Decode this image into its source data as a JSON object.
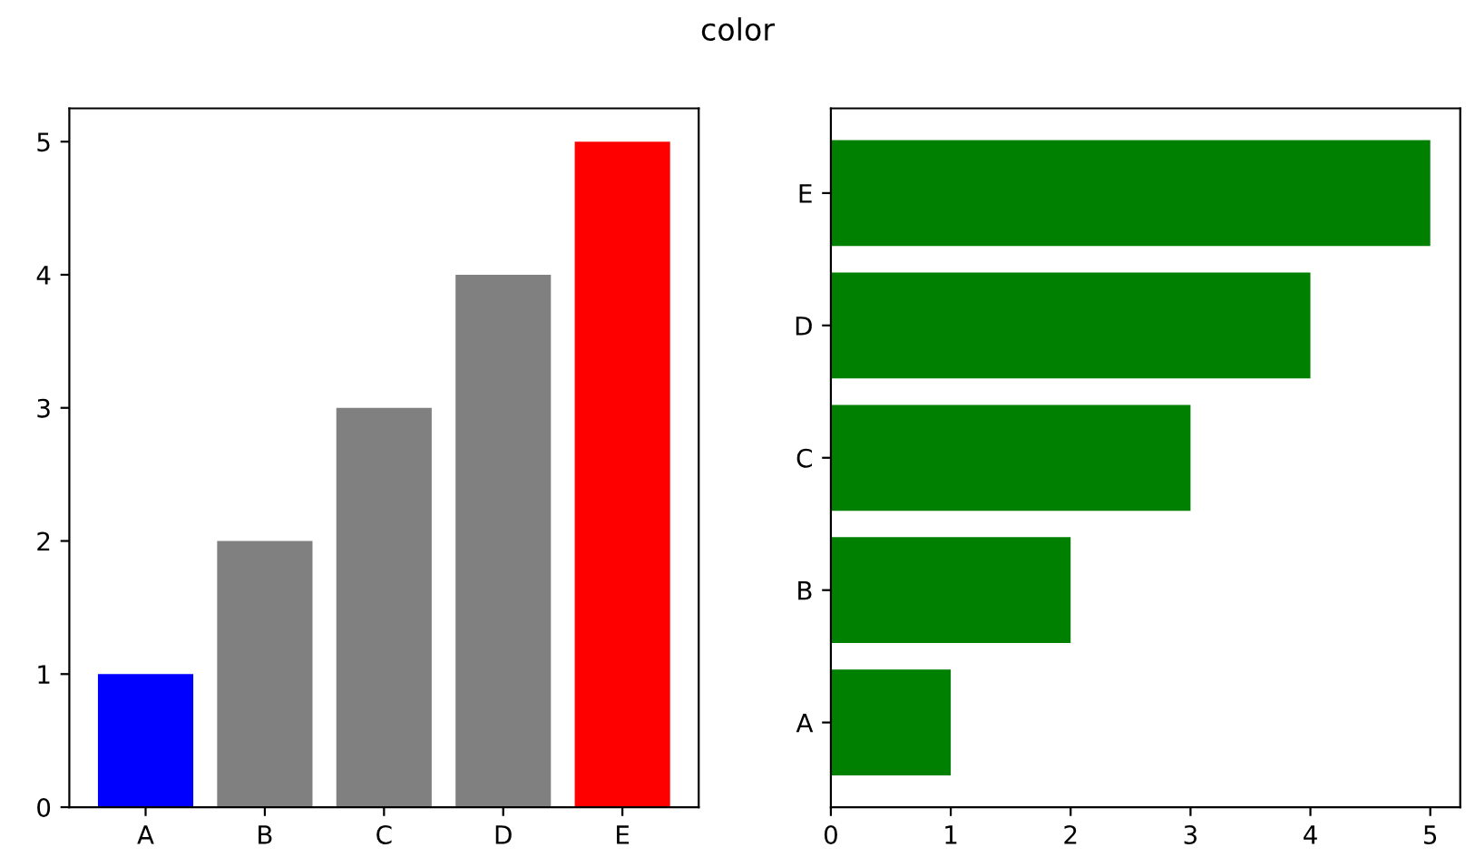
{
  "chart_data": [
    {
      "type": "bar",
      "title": "color",
      "categories": [
        "A",
        "B",
        "C",
        "D",
        "E"
      ],
      "values": [
        1,
        2,
        3,
        4,
        5
      ],
      "colors": [
        "#0000ff",
        "#808080",
        "#808080",
        "#808080",
        "#ff0000"
      ],
      "ylim": [
        0,
        5.25
      ],
      "yticks": [
        0,
        1,
        2,
        3,
        4,
        5
      ],
      "grid": false
    },
    {
      "type": "bar",
      "orientation": "horizontal",
      "categories": [
        "E",
        "D",
        "C",
        "B",
        "A"
      ],
      "values": [
        5,
        4,
        3,
        2,
        1
      ],
      "colors": [
        "#008000",
        "#008000",
        "#008000",
        "#008000",
        "#008000"
      ],
      "xlim": [
        0,
        5.25
      ],
      "xticks": [
        0,
        1,
        2,
        3,
        4,
        5
      ],
      "grid": false
    }
  ]
}
